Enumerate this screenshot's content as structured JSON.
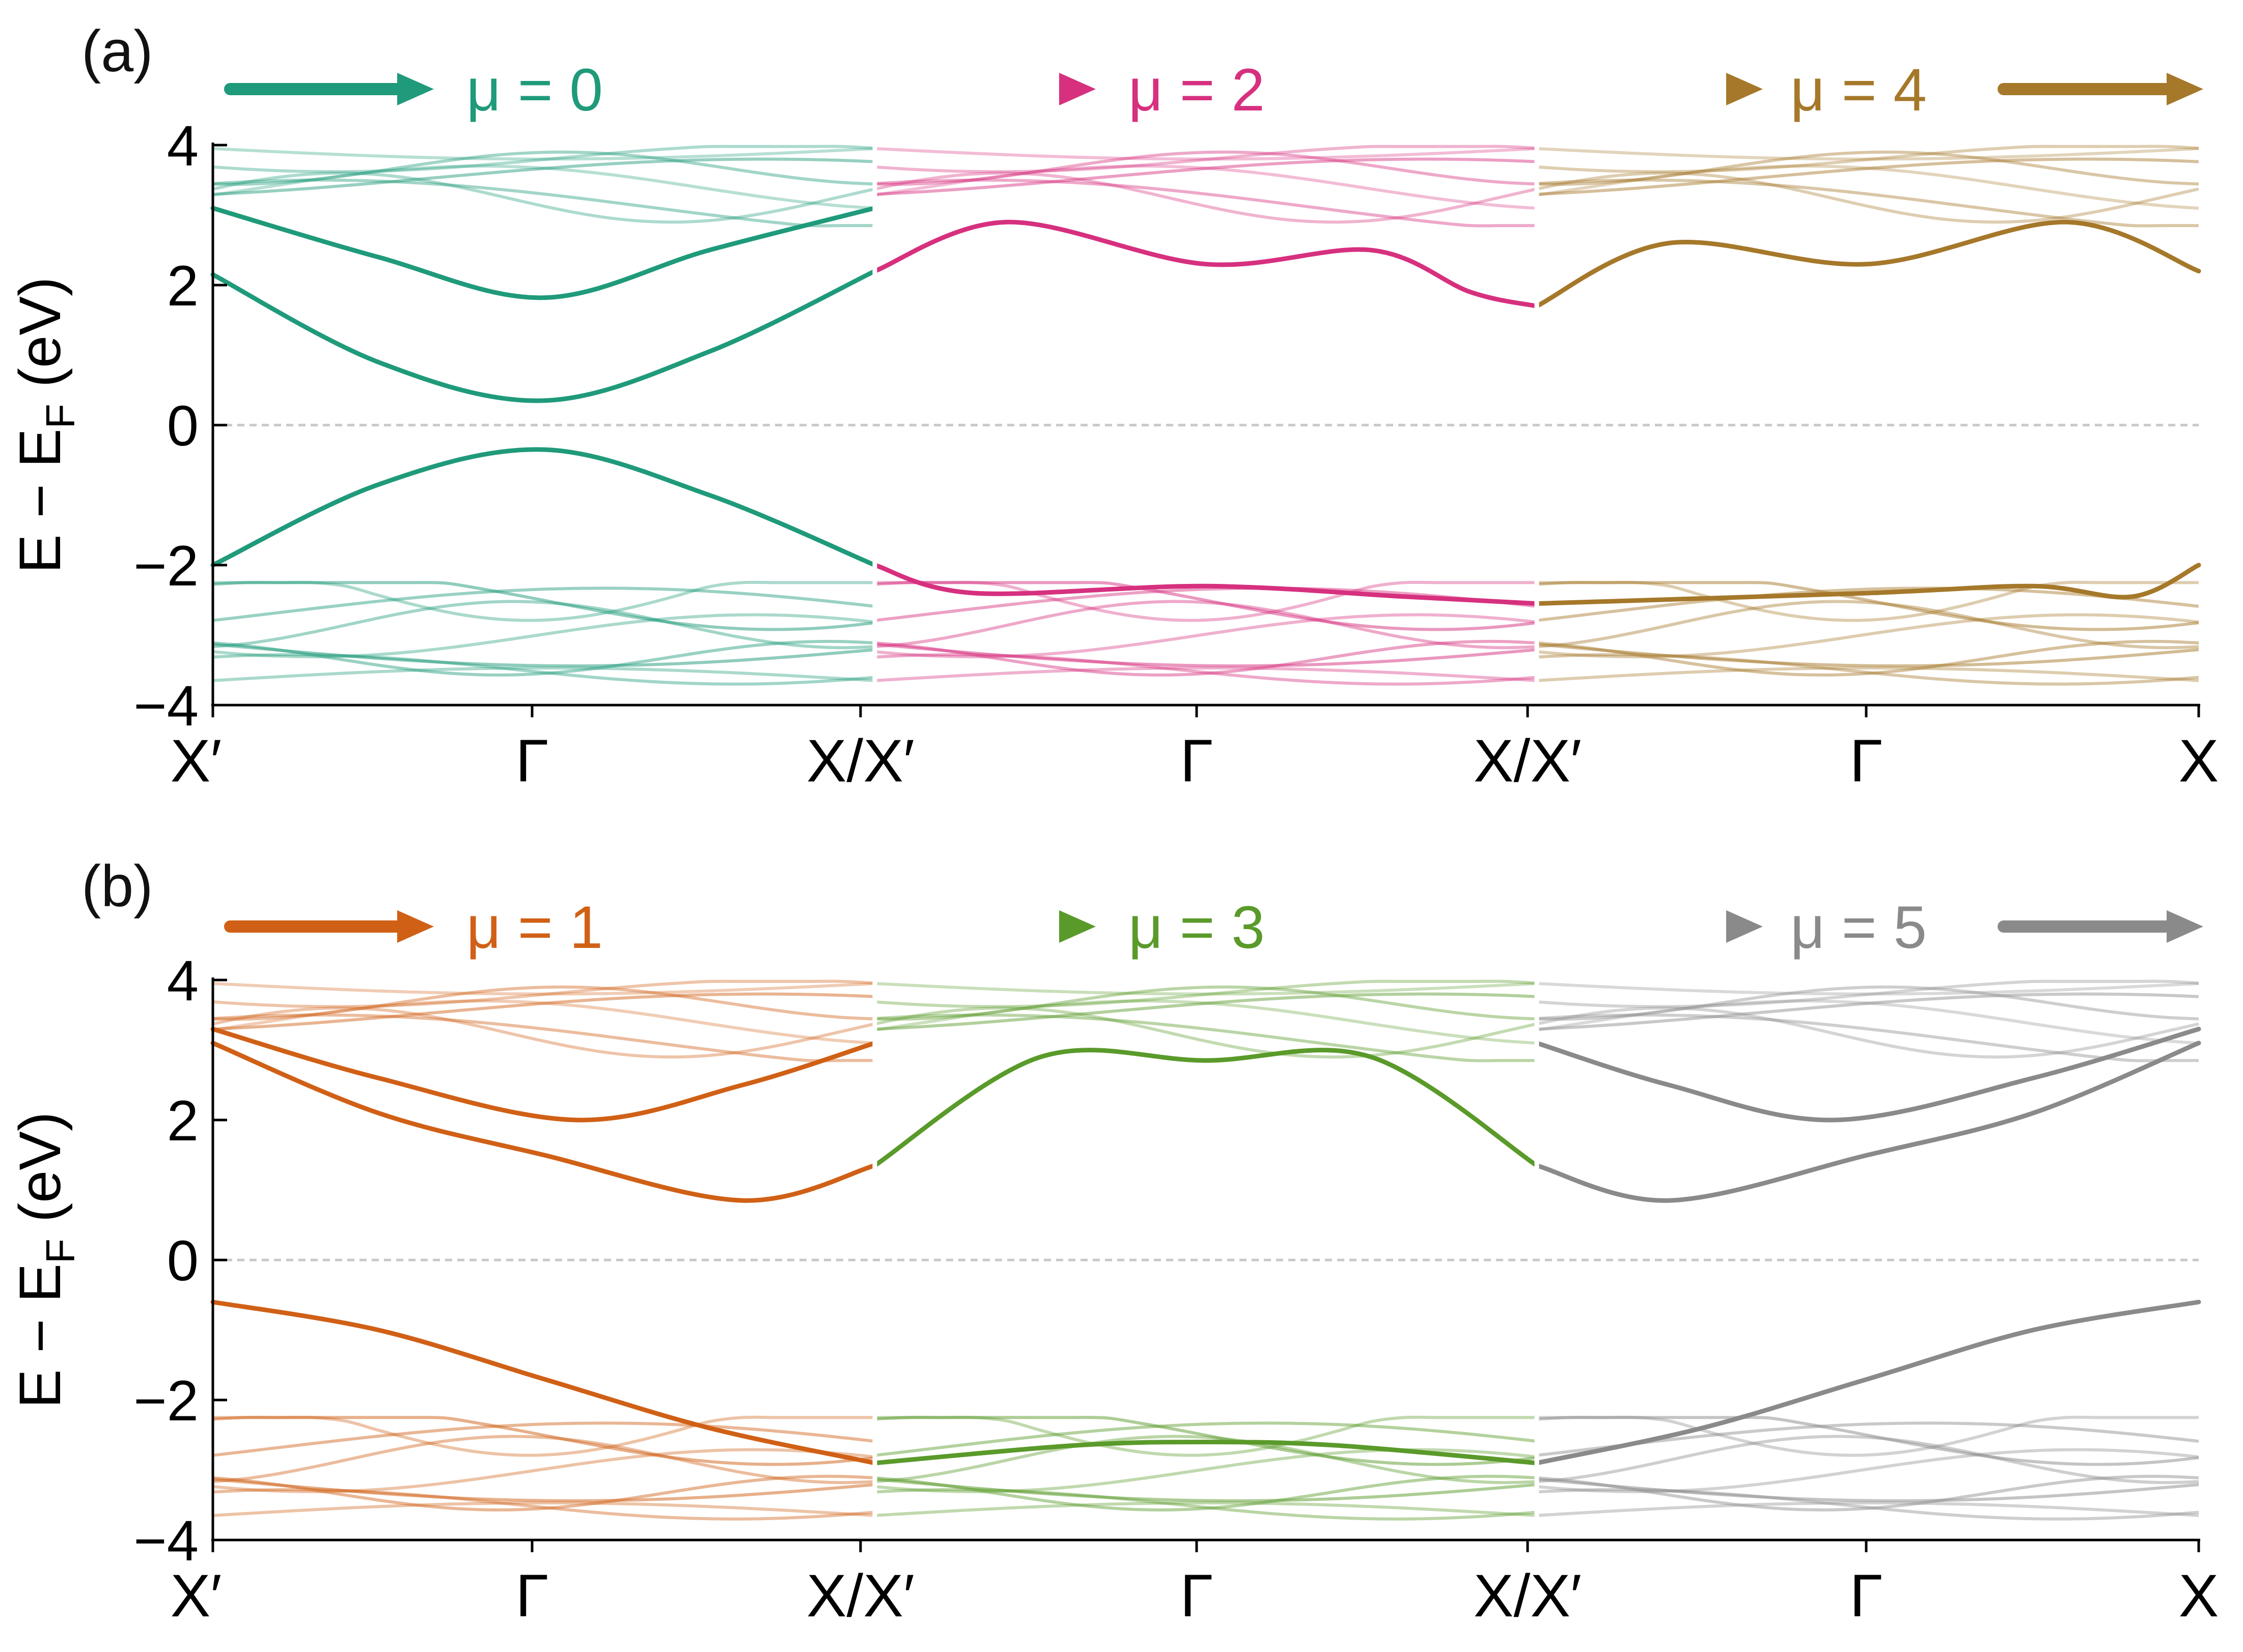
{
  "chart_data": [
    {
      "panel_label": "(a)",
      "type": "line",
      "ylabel_main": "E − E",
      "ylabel_sub": "F",
      "ylabel_unit": " (eV)",
      "ylim": [
        -4,
        4
      ],
      "yticks": [
        4,
        2,
        0,
        -2,
        -4
      ],
      "ytick_labels": [
        "4",
        "2",
        "0",
        "−2",
        "−4"
      ],
      "fermi_level": 0,
      "xticks": [
        "X′",
        "Γ",
        "X/X′",
        "Γ",
        "X/X′",
        "Γ",
        "X"
      ],
      "segment_mu_labels": [
        "μ = 0",
        "μ = 2",
        "μ = 4"
      ],
      "segment_colors": [
        "#1f9a7a",
        "#d6307f",
        "#a5782a"
      ],
      "series": [
        {
          "name": "conduction band 1 (μ=0)",
          "segment": 0,
          "x": [
            0,
            0.25,
            0.5,
            0.75,
            1
          ],
          "y": [
            2.15,
            0.9,
            0.35,
            1.05,
            2.2
          ],
          "emphasis": "strong"
        },
        {
          "name": "conduction band 2 (μ=0)",
          "segment": 0,
          "x": [
            0,
            0.25,
            0.5,
            0.75,
            1
          ],
          "y": [
            3.1,
            2.4,
            1.82,
            2.5,
            3.1
          ],
          "emphasis": "strong"
        },
        {
          "name": "valence band 1 (μ=0)",
          "segment": 0,
          "x": [
            0,
            0.25,
            0.5,
            0.75,
            1
          ],
          "y": [
            -2.0,
            -0.85,
            -0.35,
            -1.0,
            -2.0
          ],
          "emphasis": "strong"
        },
        {
          "name": "conduction band 1 (μ=2)",
          "segment": 1,
          "x": [
            0,
            0.2,
            0.5,
            0.75,
            0.9,
            1
          ],
          "y": [
            2.2,
            2.9,
            2.3,
            2.5,
            1.9,
            1.7
          ],
          "emphasis": "strong"
        },
        {
          "name": "valence band 1 (μ=2)",
          "segment": 1,
          "x": [
            0,
            0.15,
            0.5,
            0.8,
            1
          ],
          "y": [
            -2.0,
            -2.4,
            -2.3,
            -2.45,
            -2.55
          ],
          "emphasis": "strong"
        },
        {
          "name": "conduction band 1 (μ=4)",
          "segment": 2,
          "x": [
            0,
            0.2,
            0.5,
            0.8,
            1
          ],
          "y": [
            1.7,
            2.6,
            2.3,
            2.9,
            2.2
          ],
          "emphasis": "strong"
        },
        {
          "name": "valence band 1 (μ=4)",
          "segment": 2,
          "x": [
            0,
            0.5,
            0.75,
            0.9,
            1
          ],
          "y": [
            -2.55,
            -2.4,
            -2.3,
            -2.45,
            -2.0
          ],
          "emphasis": "strong"
        }
      ]
    },
    {
      "panel_label": "(b)",
      "type": "line",
      "ylabel_main": "E − E",
      "ylabel_sub": "F",
      "ylabel_unit": " (eV)",
      "ylim": [
        -4,
        4
      ],
      "yticks": [
        4,
        2,
        0,
        -2,
        -4
      ],
      "ytick_labels": [
        "4",
        "2",
        "0",
        "−2",
        "−4"
      ],
      "fermi_level": 0,
      "xticks": [
        "X′",
        "Γ",
        "X/X′",
        "Γ",
        "X/X′",
        "Γ",
        "X"
      ],
      "segment_mu_labels": [
        "μ = 1",
        "μ = 3",
        "μ = 5"
      ],
      "segment_colors": [
        "#d06016",
        "#5a9a2a",
        "#8a8a8a"
      ],
      "series": [
        {
          "name": "conduction band 1 (μ=1)",
          "segment": 0,
          "x": [
            0,
            0.25,
            0.5,
            0.8,
            1
          ],
          "y": [
            3.1,
            2.1,
            1.5,
            0.85,
            1.35
          ],
          "emphasis": "strong"
        },
        {
          "name": "conduction band 2 (μ=1)",
          "segment": 0,
          "x": [
            0,
            0.25,
            0.55,
            0.8,
            1
          ],
          "y": [
            3.3,
            2.6,
            2.0,
            2.5,
            3.1
          ],
          "emphasis": "strong"
        },
        {
          "name": "valence band 1 (μ=1)",
          "segment": 0,
          "x": [
            0,
            0.25,
            0.5,
            0.75,
            1
          ],
          "y": [
            -0.6,
            -1.0,
            -1.7,
            -2.4,
            -2.9
          ],
          "emphasis": "strong"
        },
        {
          "name": "conduction band 1 (μ=3)",
          "segment": 1,
          "x": [
            0,
            0.25,
            0.5,
            0.75,
            1
          ],
          "y": [
            1.35,
            2.9,
            2.85,
            2.9,
            1.35
          ],
          "emphasis": "strong"
        },
        {
          "name": "valence band 1 (μ=3)",
          "segment": 1,
          "x": [
            0,
            0.3,
            0.5,
            0.7,
            1
          ],
          "y": [
            -2.9,
            -2.65,
            -2.6,
            -2.65,
            -2.9
          ],
          "emphasis": "strong"
        },
        {
          "name": "conduction band 1 (μ=5)",
          "segment": 2,
          "x": [
            0,
            0.2,
            0.5,
            0.75,
            1
          ],
          "y": [
            1.35,
            0.85,
            1.5,
            2.1,
            3.1
          ],
          "emphasis": "strong"
        },
        {
          "name": "conduction band 2 (μ=5)",
          "segment": 2,
          "x": [
            0,
            0.2,
            0.45,
            0.75,
            1
          ],
          "y": [
            3.1,
            2.5,
            2.0,
            2.6,
            3.3
          ],
          "emphasis": "strong"
        },
        {
          "name": "valence band 1 (μ=5)",
          "segment": 2,
          "x": [
            0,
            0.25,
            0.5,
            0.75,
            1
          ],
          "y": [
            -2.9,
            -2.4,
            -1.7,
            -1.0,
            -0.6
          ],
          "emphasis": "strong"
        }
      ]
    }
  ]
}
